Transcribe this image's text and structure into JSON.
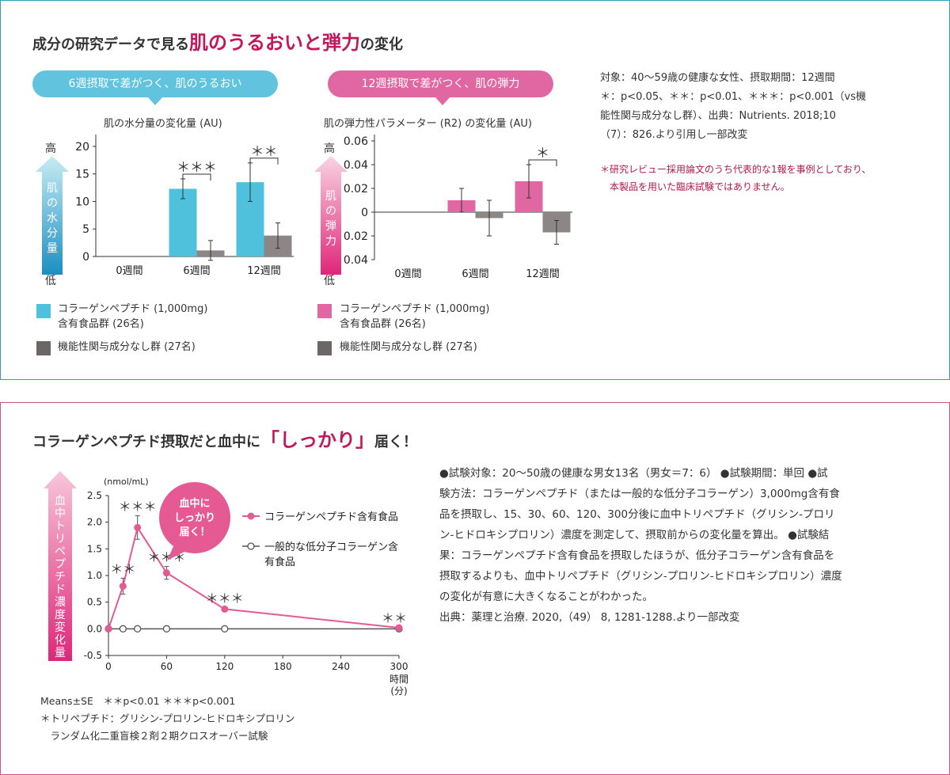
{
  "panel1": {
    "title_pre": "成分の研究データで見る",
    "title_hl": "肌のうるおいと弾力",
    "title_post": "の変化",
    "left": {
      "bubble": "6週摂取で差がつく、肌のうるおい",
      "high_label": "高",
      "low_label": "低",
      "axis_text": "肌の水分量"
    },
    "right": {
      "bubble": "12週摂取で差がつく、肌の弾力",
      "high_label": "高",
      "low_label": "低",
      "axis_text": "肌の弾力"
    },
    "legend_left": {
      "item1_line1": "コラーゲンペプチド (1,000mg)",
      "item1_line2": "含有食品群 (26名)",
      "item2": "機能性関与成分なし群 (27名)"
    },
    "legend_right": {
      "item1_line1": "コラーゲンペプチド (1,000mg)",
      "item1_line2": "含有食品群 (26名)",
      "item2": "機能性関与成分なし群 (27名)"
    },
    "note_lines": [
      "対象：40〜59歳の健康な女性、摂取期間：12週間",
      "＊：p<0.05、＊＊：p<0.01、＊＊＊：p<0.001（vs機",
      "能性関与成分なし群）、出典：Nutrients. 2018;10",
      "（7）：826.より引用し一部改変"
    ],
    "note_red_lines": [
      "＊研究レビュー採用論文のうち代表的な1報を事例としており、",
      "　本製品を用いた臨床試験ではありません。"
    ],
    "colors": {
      "border": "#2fa0b0",
      "blue": "#4fc1dc",
      "pink": "#e067a1",
      "gray": "#8c8686"
    }
  },
  "panel2": {
    "title_pre": "コラーゲンペプチド摂取だと血中に",
    "title_hl": "「しっかり」",
    "title_post": "届く！",
    "axis_text": "血中トリペプチド濃度変化量",
    "callout_line1": "血中に",
    "callout_line2": "しっかり",
    "callout_line3": "届く！",
    "footnotes": [
      "Means±SE　＊＊p<0.01 ＊＊＊p<0.001",
      "＊トリペプチド：グリシン-プロリン-ヒドロキシプロリン",
      "　ランダム化二重盲検２剤２期クロスオーバー試験"
    ],
    "note_lines": [
      "●試験対象：20〜50歳の健康な男女13名（男女＝7：6） ●試験期間：単回 ●試",
      "験方法：コラーゲンペプチド（または一般的な低分子コラーゲン）3,000mg含有食",
      "品を摂取し、15、30、60、120、300分後に血中トリペプチド（グリシン-プロリ",
      "ン-ヒドロキシプロリン）濃度を測定して、摂取前からの変化量を算出。 ●試験結",
      "果：コラーゲンペプチド含有食品を摂取したほうが、低分子コラーゲン含有食品を",
      "摂取するよりも、血中トリペプチド（グリシン-プロリン-ヒドロキシプロリン）濃度",
      "の変化が有意に大きくなることがわかった。",
      "出典：薬理と治療. 2020,（49） 8, 1281-1288.より一部改変"
    ],
    "colors": {
      "border": "#d0508a",
      "pink": "#e55a93",
      "gray": "#555555"
    }
  },
  "chart_data": [
    {
      "type": "bar",
      "title": "肌の水分量の変化量 (AU)",
      "categories": [
        "0週間",
        "6週間",
        "12週間"
      ],
      "series": [
        {
          "values": [
            0,
            12.3,
            13.5
          ],
          "error": [
            0,
            1.8,
            3.5
          ],
          "color": "#4fc1dc"
        },
        {
          "values": [
            0,
            1.1,
            3.8
          ],
          "error": [
            0,
            1.8,
            2.3
          ],
          "color": "#8c8686"
        }
      ],
      "yticks": [
        0,
        5,
        10,
        15,
        20
      ],
      "ylim": [
        0,
        21
      ],
      "significance": [
        {
          "category": "6週間",
          "label": "＊＊＊"
        },
        {
          "category": "12週間",
          "label": "＊＊"
        }
      ]
    },
    {
      "type": "bar",
      "title": "肌の弾力性パラメーター (R2) の変化量 (AU)",
      "categories": [
        "0週間",
        "6週間",
        "12週間"
      ],
      "series": [
        {
          "values": [
            0,
            0.01,
            0.026
          ],
          "error": [
            0,
            0.01,
            0.014
          ],
          "color": "#e067a1"
        },
        {
          "values": [
            0,
            -0.005,
            -0.017
          ],
          "error": [
            0,
            0.015,
            0.01
          ],
          "color": "#8c8686"
        }
      ],
      "yticks": [
        -0.04,
        -0.02,
        0,
        0.02,
        0.04,
        0.06
      ],
      "ytick_labels": [
        "-0.04",
        "-0.02",
        "0",
        "0.02",
        "0.04",
        "0.06"
      ],
      "ylim": [
        -0.04,
        0.06
      ],
      "significance": [
        {
          "category": "12週間",
          "label": "＊"
        }
      ]
    },
    {
      "type": "line",
      "ylabel": "(nmol/mL)",
      "xlabel_line1": "時間",
      "xlabel_line2": "(分)",
      "xticks": [
        0,
        60,
        120,
        180,
        240,
        300
      ],
      "yticks": [
        -0.5,
        0,
        0.5,
        1.0,
        1.5,
        2.0,
        2.5
      ],
      "ytick_labels": [
        "-0.5",
        "0.0",
        "0.5",
        "1.0",
        "1.5",
        "2.0",
        "2.5"
      ],
      "xlim": [
        0,
        300
      ],
      "ylim": [
        -0.5,
        2.5
      ],
      "series": [
        {
          "name": "コラーゲンペプチド含有食品",
          "x": [
            0,
            15,
            30,
            60,
            120,
            300
          ],
          "y": [
            0,
            0.8,
            1.9,
            1.05,
            0.37,
            0.02
          ],
          "error": [
            0,
            0.15,
            0.22,
            0.12,
            0.03,
            0.01
          ],
          "sig": [
            "",
            "＊＊",
            "＊＊＊",
            "＊＊＊",
            "＊＊＊",
            "＊＊"
          ],
          "color": "#e55a93"
        },
        {
          "name_line1": "一般的な低分子コラーゲン含",
          "name_line2": "有食品",
          "x": [
            0,
            15,
            30,
            60,
            120,
            300
          ],
          "y": [
            0,
            0,
            0,
            0,
            0,
            0
          ],
          "color": "#555555"
        }
      ]
    }
  ]
}
